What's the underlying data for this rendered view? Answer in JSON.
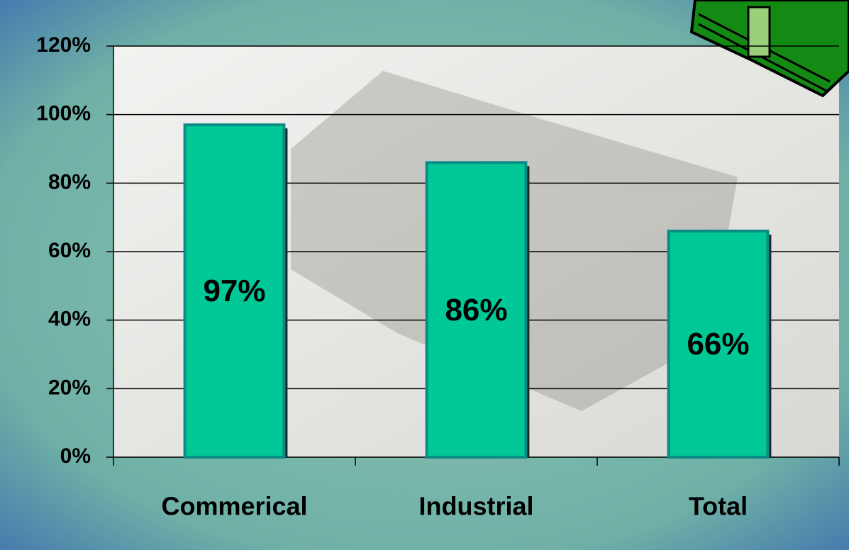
{
  "chart_data": {
    "type": "bar",
    "categories": [
      "Commerical",
      "Industrial",
      "Total"
    ],
    "values": [
      97,
      86,
      66
    ],
    "value_labels": [
      "97%",
      "86%",
      "66%"
    ],
    "color": "#00c896",
    "ylim": [
      0,
      120
    ],
    "yticks": [
      {
        "value": 0,
        "label": "0%"
      },
      {
        "value": 20,
        "label": "20%"
      },
      {
        "value": 40,
        "label": "40%"
      },
      {
        "value": 60,
        "label": "60%"
      },
      {
        "value": 80,
        "label": "80%"
      },
      {
        "value": 100,
        "label": "100%"
      },
      {
        "value": 120,
        "label": "120%"
      }
    ],
    "grid": true
  }
}
